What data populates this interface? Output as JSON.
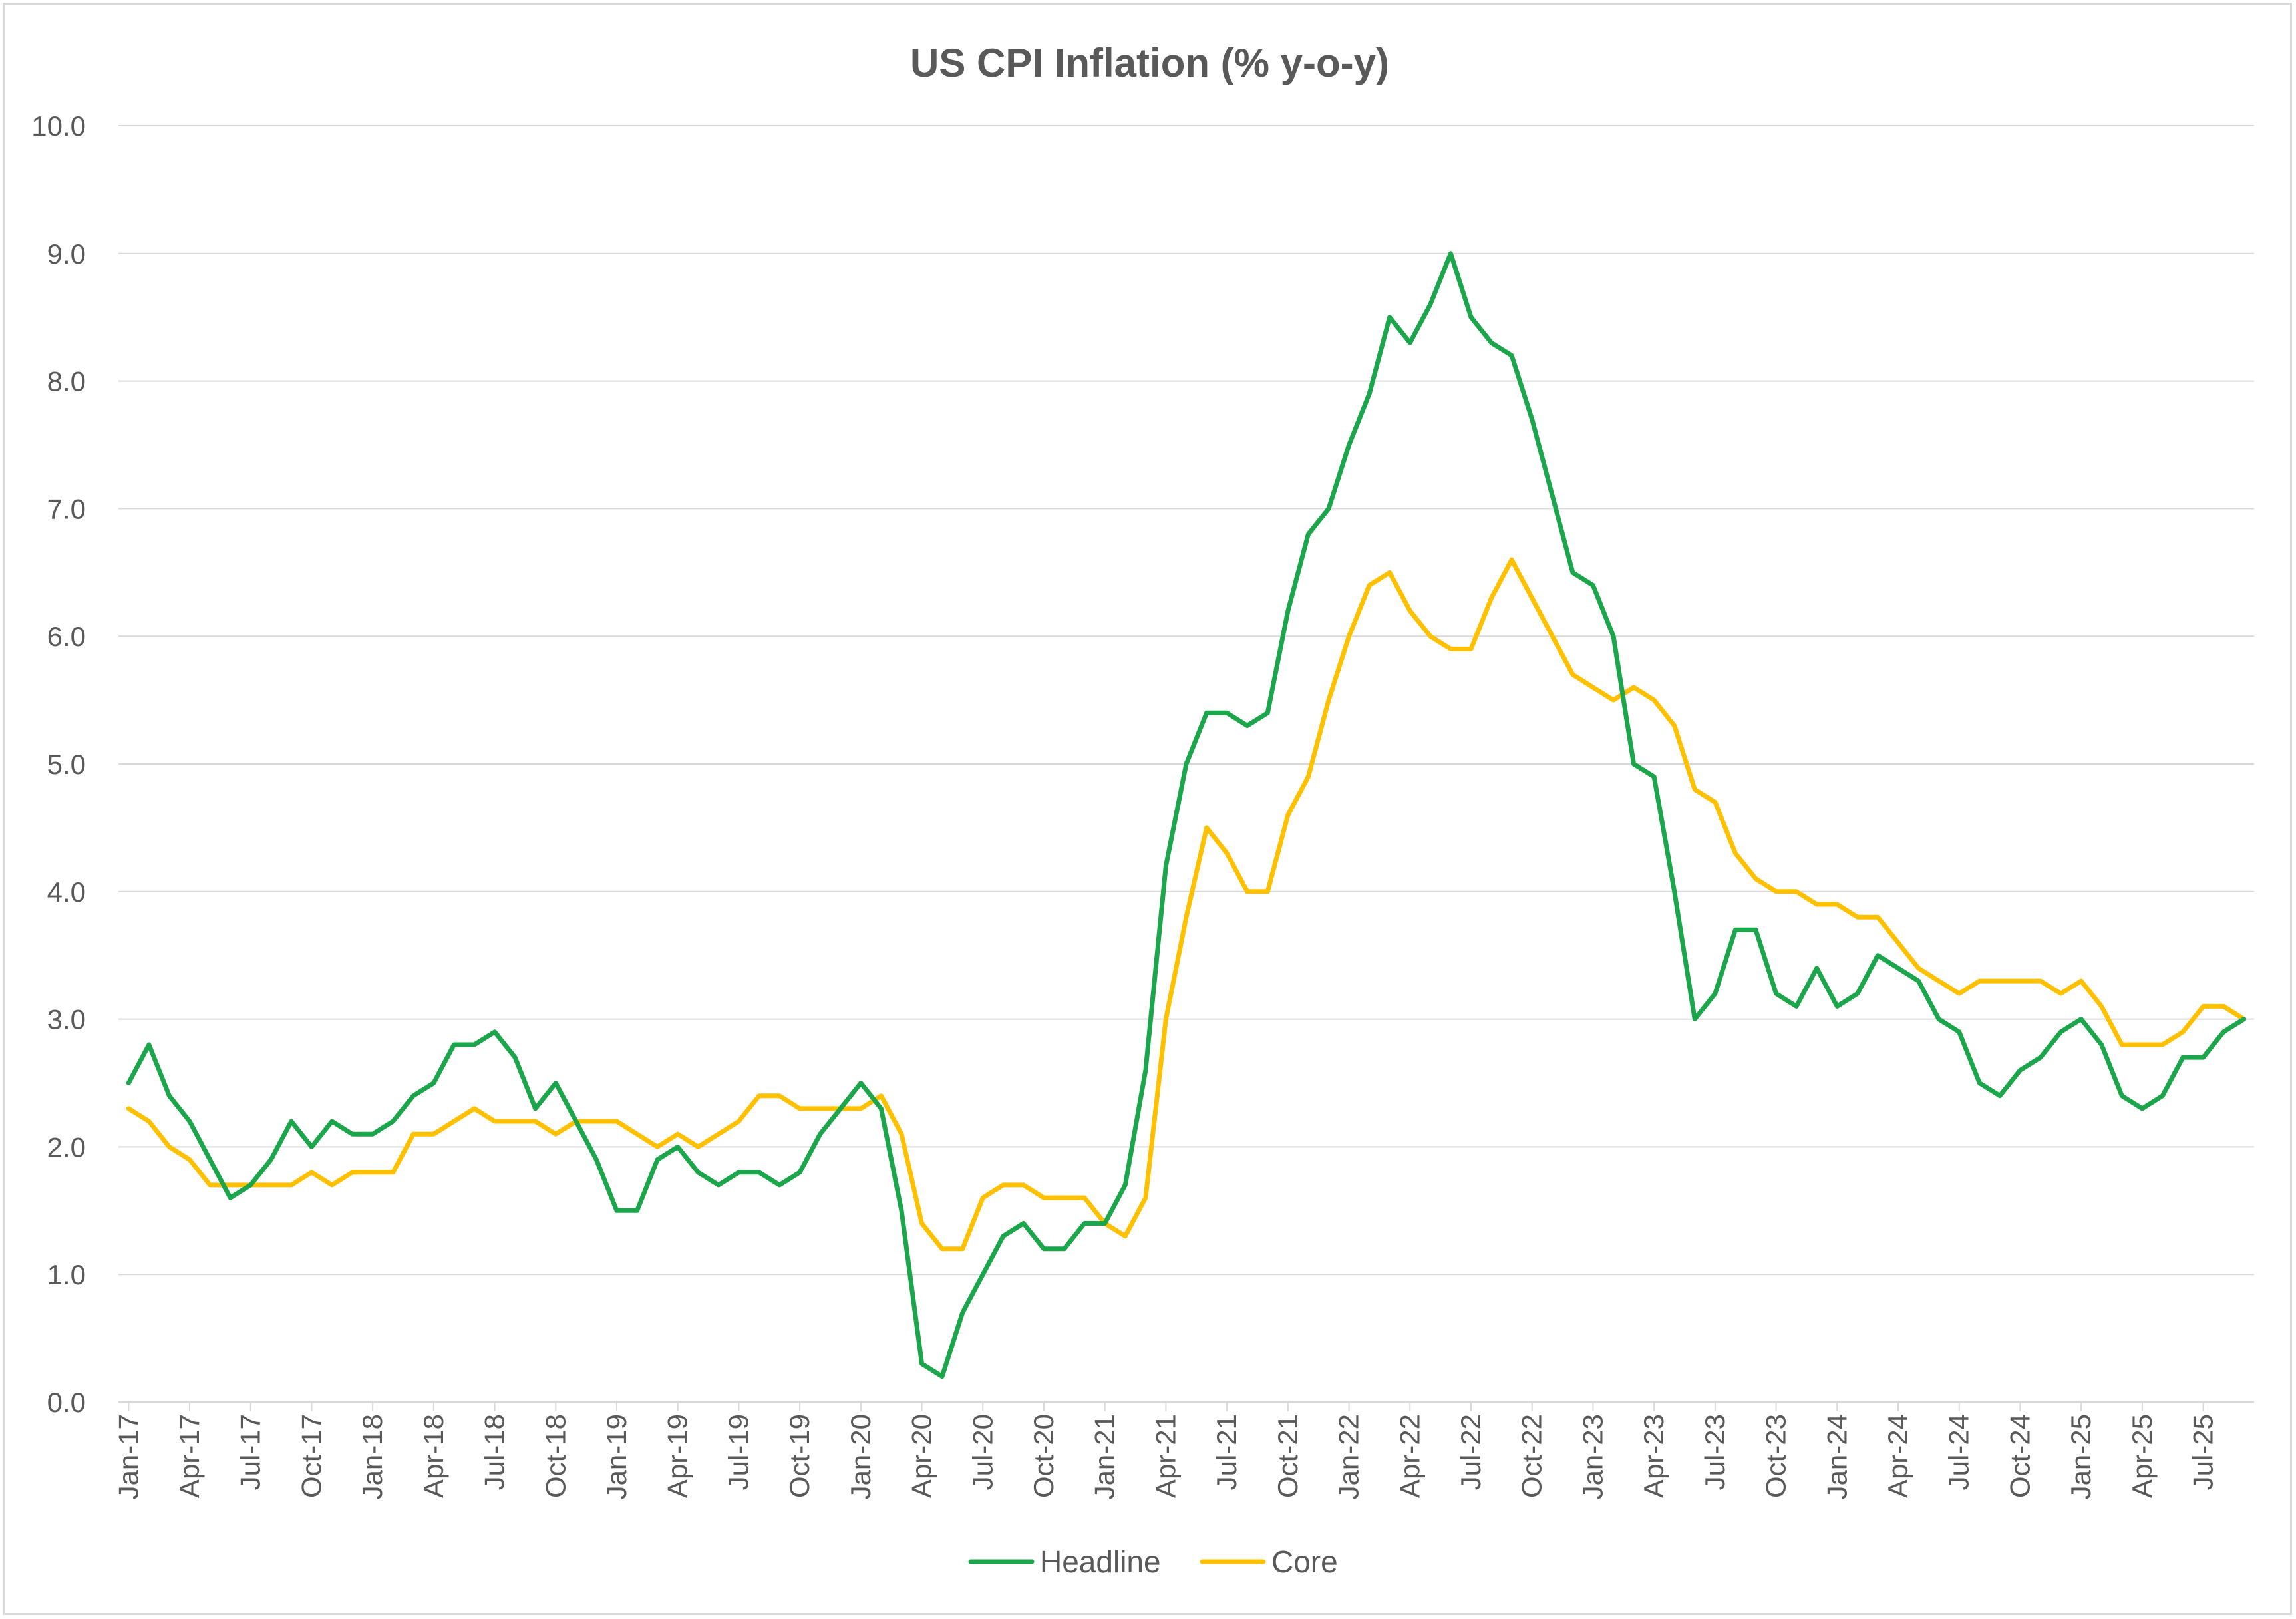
{
  "chart_data": {
    "type": "line",
    "title": "US CPI Inflation (% y-o-y)",
    "xlabel": "",
    "ylabel": "",
    "ylim": [
      0,
      10
    ],
    "yticks": [
      "0.0",
      "1.0",
      "2.0",
      "3.0",
      "4.0",
      "5.0",
      "6.0",
      "7.0",
      "8.0",
      "9.0",
      "10.0"
    ],
    "grid": "horizontal",
    "legend_position": "bottom",
    "x_start": "Jan-17",
    "x": [
      "Jan-17",
      "Feb-17",
      "Mar-17",
      "Apr-17",
      "May-17",
      "Jun-17",
      "Jul-17",
      "Aug-17",
      "Sep-17",
      "Oct-17",
      "Nov-17",
      "Dec-17",
      "Jan-18",
      "Feb-18",
      "Mar-18",
      "Apr-18",
      "May-18",
      "Jun-18",
      "Jul-18",
      "Aug-18",
      "Sep-18",
      "Oct-18",
      "Nov-18",
      "Dec-18",
      "Jan-19",
      "Feb-19",
      "Mar-19",
      "Apr-19",
      "May-19",
      "Jun-19",
      "Jul-19",
      "Aug-19",
      "Sep-19",
      "Oct-19",
      "Nov-19",
      "Dec-19",
      "Jan-20",
      "Feb-20",
      "Mar-20",
      "Apr-20",
      "May-20",
      "Jun-20",
      "Jul-20",
      "Aug-20",
      "Sep-20",
      "Oct-20",
      "Nov-20",
      "Dec-20",
      "Jan-21",
      "Feb-21",
      "Mar-21",
      "Apr-21",
      "May-21",
      "Jun-21",
      "Jul-21",
      "Aug-21",
      "Sep-21",
      "Oct-21",
      "Nov-21",
      "Dec-21",
      "Jan-22",
      "Feb-22",
      "Mar-22",
      "Apr-22",
      "May-22",
      "Jun-22",
      "Jul-22",
      "Aug-22",
      "Sep-22",
      "Oct-22",
      "Nov-22",
      "Dec-22",
      "Jan-23",
      "Feb-23",
      "Mar-23",
      "Apr-23",
      "May-23",
      "Jun-23",
      "Jul-23",
      "Aug-23",
      "Sep-23",
      "Oct-23",
      "Nov-23",
      "Dec-23",
      "Jan-24",
      "Feb-24",
      "Mar-24",
      "Apr-24",
      "May-24",
      "Jun-24",
      "Jul-24",
      "Aug-24",
      "Sep-24",
      "Oct-24",
      "Nov-24",
      "Dec-24",
      "Jan-25",
      "Feb-25",
      "Mar-25",
      "Apr-25",
      "May-25",
      "Jun-25",
      "Jul-25",
      "Aug-25",
      "Sep-25"
    ],
    "x_tick_labels": [
      "Jan-17",
      "Apr-17",
      "Jul-17",
      "Oct-17",
      "Jan-18",
      "Apr-18",
      "Jul-18",
      "Oct-18",
      "Jan-19",
      "Apr-19",
      "Jul-19",
      "Oct-19",
      "Jan-20",
      "Apr-20",
      "Jul-20",
      "Oct-20",
      "Jan-21",
      "Apr-21",
      "Jul-21",
      "Oct-21",
      "Jan-22",
      "Apr-22",
      "Jul-22",
      "Oct-22",
      "Jan-23",
      "Apr-23",
      "Jul-23",
      "Oct-23",
      "Jan-24",
      "Apr-24",
      "Jul-24",
      "Oct-24",
      "Jan-25",
      "Apr-25",
      "Jul-25"
    ],
    "series": [
      {
        "name": "Headline",
        "color": "#1ca64c",
        "values": [
          2.5,
          2.8,
          2.4,
          2.2,
          1.9,
          1.6,
          1.7,
          1.9,
          2.2,
          2.0,
          2.2,
          2.1,
          2.1,
          2.2,
          2.4,
          2.5,
          2.8,
          2.8,
          2.9,
          2.7,
          2.3,
          2.5,
          2.2,
          1.9,
          1.5,
          1.5,
          1.9,
          2.0,
          1.8,
          1.7,
          1.8,
          1.8,
          1.7,
          1.8,
          2.1,
          2.3,
          2.5,
          2.3,
          1.5,
          0.3,
          0.2,
          0.7,
          1.0,
          1.3,
          1.4,
          1.2,
          1.2,
          1.4,
          1.4,
          1.7,
          2.6,
          4.2,
          5.0,
          5.4,
          5.4,
          5.3,
          5.4,
          6.2,
          6.8,
          7.0,
          7.5,
          7.9,
          8.5,
          8.3,
          8.6,
          9.0,
          8.5,
          8.3,
          8.2,
          7.7,
          7.1,
          6.5,
          6.4,
          6.0,
          5.0,
          4.9,
          4.0,
          3.0,
          3.2,
          3.7,
          3.7,
          3.2,
          3.1,
          3.4,
          3.1,
          3.2,
          3.5,
          3.4,
          3.3,
          3.0,
          2.9,
          2.5,
          2.4,
          2.6,
          2.7,
          2.9,
          3.0,
          2.8,
          2.4,
          2.3,
          2.4,
          2.7,
          2.7,
          2.9,
          3.0
        ]
      },
      {
        "name": "Core",
        "color": "#ffc000",
        "values": [
          2.3,
          2.2,
          2.0,
          1.9,
          1.7,
          1.7,
          1.7,
          1.7,
          1.7,
          1.8,
          1.7,
          1.8,
          1.8,
          1.8,
          2.1,
          2.1,
          2.2,
          2.3,
          2.2,
          2.2,
          2.2,
          2.1,
          2.2,
          2.2,
          2.2,
          2.1,
          2.0,
          2.1,
          2.0,
          2.1,
          2.2,
          2.4,
          2.4,
          2.3,
          2.3,
          2.3,
          2.3,
          2.4,
          2.1,
          1.4,
          1.2,
          1.2,
          1.6,
          1.7,
          1.7,
          1.6,
          1.6,
          1.6,
          1.4,
          1.3,
          1.6,
          3.0,
          3.8,
          4.5,
          4.3,
          4.0,
          4.0,
          4.6,
          4.9,
          5.5,
          6.0,
          6.4,
          6.5,
          6.2,
          6.0,
          5.9,
          5.9,
          6.3,
          6.6,
          6.3,
          6.0,
          5.7,
          5.6,
          5.5,
          5.6,
          5.5,
          5.3,
          4.8,
          4.7,
          4.3,
          4.1,
          4.0,
          4.0,
          3.9,
          3.9,
          3.8,
          3.8,
          3.6,
          3.4,
          3.3,
          3.2,
          3.3,
          3.3,
          3.3,
          3.3,
          3.2,
          3.3,
          3.1,
          2.8,
          2.8,
          2.8,
          2.9,
          3.1,
          3.1,
          3.0
        ]
      }
    ]
  }
}
